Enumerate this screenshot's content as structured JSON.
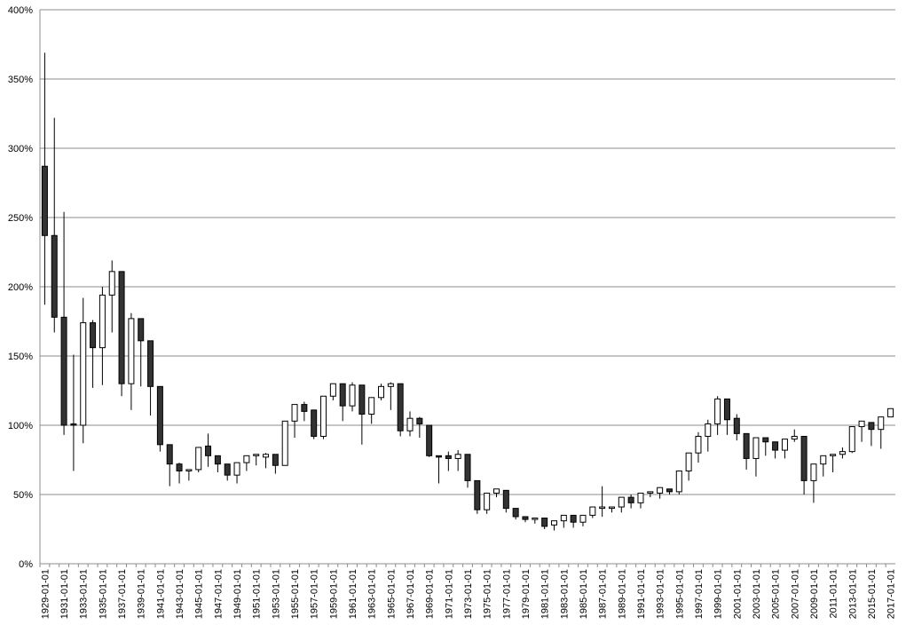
{
  "chart_data": {
    "type": "candlestick",
    "categories": [
      "1929-01-01",
      null,
      "1931-01-01",
      null,
      "1933-01-01",
      null,
      "1935-01-01",
      null,
      "1937-01-01",
      null,
      "1939-01-01",
      null,
      "1941-01-01",
      null,
      "1943-01-01",
      null,
      "1945-01-01",
      null,
      "1947-01-01",
      null,
      "1949-01-01",
      null,
      "1951-01-01",
      null,
      "1953-01-01",
      null,
      "1955-01-01",
      null,
      "1957-01-01",
      null,
      "1959-01-01",
      null,
      "1961-01-01",
      null,
      "1963-01-01",
      null,
      "1965-01-01",
      null,
      "1967-01-01",
      null,
      "1969-01-01",
      null,
      "1971-01-01",
      null,
      "1973-01-01",
      null,
      "1975-01-01",
      null,
      "1977-01-01",
      null,
      "1979-01-01",
      null,
      "1981-01-01",
      null,
      "1983-01-01",
      null,
      "1985-01-01",
      null,
      "1987-01-01",
      null,
      "1989-01-01",
      null,
      "1991-01-01",
      null,
      "1993-01-01",
      null,
      "1995-01-01",
      null,
      "1997-01-01",
      null,
      "1999-01-01",
      null,
      "2001-01-01",
      null,
      "2003-01-01",
      null,
      "2005-01-01",
      null,
      "2007-01-01",
      null,
      "2009-01-01",
      null,
      "2011-01-01",
      null,
      "2013-01-01",
      null,
      "2015-01-01",
      null,
      "2017-01-01"
    ],
    "open": [
      287,
      237,
      178,
      101,
      100,
      174,
      156,
      194,
      211,
      130,
      177,
      161,
      128,
      86,
      72,
      67,
      68,
      85,
      78,
      72,
      64,
      73,
      78,
      77,
      79,
      71,
      103,
      115,
      111,
      92,
      121,
      130,
      114,
      129,
      108,
      120,
      128,
      130,
      96,
      105,
      100,
      78,
      78,
      76,
      79,
      60,
      39,
      51,
      53,
      40,
      34,
      32,
      33,
      28,
      31,
      35,
      30,
      35,
      40,
      40,
      41,
      48,
      44,
      51,
      51,
      54,
      52,
      67,
      80,
      92,
      101,
      119,
      105,
      94,
      76,
      91,
      88,
      82,
      90,
      92,
      60,
      72,
      78,
      79,
      81,
      99,
      102,
      97,
      106
    ],
    "high": [
      369,
      322,
      254,
      151,
      192,
      176,
      200,
      219,
      211,
      181,
      177,
      161,
      128,
      86,
      73,
      68,
      84,
      94,
      78,
      72,
      73,
      78,
      79,
      80,
      79,
      103,
      115,
      117,
      111,
      121,
      130,
      130,
      131,
      129,
      120,
      130,
      131,
      130,
      110,
      106,
      100,
      78,
      81,
      82,
      79,
      60,
      51,
      54,
      53,
      40,
      34,
      33,
      33,
      31,
      35,
      35,
      35,
      41,
      56,
      41,
      48,
      50,
      51,
      52,
      55,
      54,
      67,
      80,
      95,
      104,
      121,
      119,
      108,
      94,
      91,
      91,
      88,
      90,
      97,
      92,
      72,
      78,
      79,
      84,
      99,
      103,
      102,
      106,
      112
    ],
    "low": [
      187,
      167,
      93,
      67,
      87,
      127,
      129,
      167,
      121,
      111,
      128,
      107,
      81,
      56,
      58,
      60,
      66,
      70,
      66,
      60,
      58,
      67,
      71,
      69,
      65,
      71,
      91,
      103,
      90,
      90,
      118,
      103,
      110,
      86,
      101,
      118,
      111,
      92,
      92,
      91,
      77,
      58,
      67,
      67,
      55,
      36,
      36,
      48,
      37,
      32,
      30,
      29,
      25,
      24,
      26,
      26,
      27,
      33,
      34,
      37,
      37,
      40,
      40,
      48,
      47,
      50,
      50,
      60,
      73,
      81,
      93,
      93,
      89,
      68,
      63,
      78,
      76,
      76,
      88,
      50,
      44,
      63,
      66,
      76,
      80,
      88,
      85,
      83,
      106
    ],
    "close": [
      237,
      178,
      100,
      100,
      174,
      156,
      194,
      211,
      130,
      177,
      161,
      128,
      86,
      72,
      67,
      68,
      84,
      78,
      72,
      64,
      73,
      78,
      79,
      79,
      71,
      103,
      115,
      110,
      92,
      121,
      130,
      114,
      129,
      108,
      120,
      128,
      130,
      96,
      105,
      101,
      78,
      77,
      76,
      79,
      60,
      39,
      51,
      54,
      40,
      34,
      32,
      33,
      27,
      31,
      35,
      30,
      35,
      41,
      41,
      41,
      48,
      44,
      51,
      52,
      55,
      52,
      67,
      80,
      92,
      101,
      119,
      104,
      94,
      76,
      91,
      88,
      82,
      90,
      92,
      60,
      72,
      78,
      79,
      81,
      99,
      103,
      97,
      106,
      112
    ],
    "up_color": "#ffffff",
    "down_color": "#333333",
    "ylim": [
      0,
      400
    ],
    "yticks": [
      {
        "value": 0,
        "label": "0%"
      },
      {
        "value": 50,
        "label": "50%"
      },
      {
        "value": 100,
        "label": "100%"
      },
      {
        "value": 150,
        "label": "150%"
      },
      {
        "value": 200,
        "label": "200%"
      },
      {
        "value": 250,
        "label": "250%"
      },
      {
        "value": 300,
        "label": "300%"
      },
      {
        "value": 350,
        "label": "350%"
      },
      {
        "value": 400,
        "label": "400%"
      }
    ],
    "grid": true
  }
}
